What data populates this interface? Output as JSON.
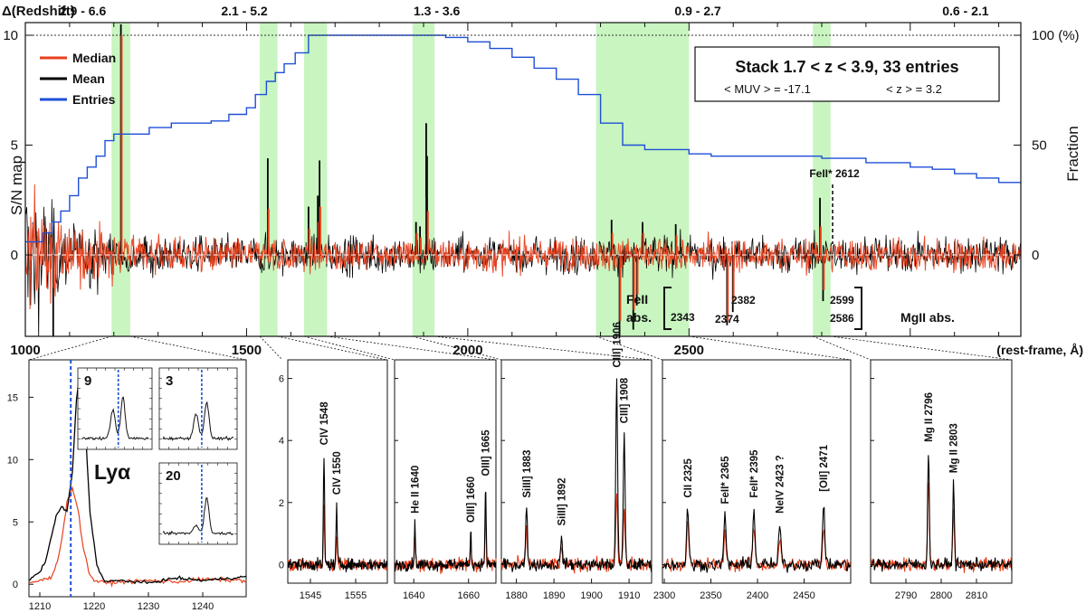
{
  "figure": {
    "top_label": "Δ(Redshift)",
    "y_left_label": "S/N map",
    "y_right_label": "Fraction",
    "x_label": "(rest-frame, Å)",
    "stack_title": "Stack 1.7 < z < 3.9,  33 entries",
    "stack_muv": "< MUV > = -17.1",
    "stack_z": "< z > = 3.2",
    "fe_label": "FeII* 2612",
    "fe_abs_label_1": "FeII",
    "fe_abs_label_2": "abs.",
    "fe_abs_waves": [
      "2343",
      "2374",
      "2382",
      "2599",
      "2586"
    ],
    "mg_abs_label": "MgII abs.",
    "legend": [
      {
        "label": "Median",
        "color": "#e8401c"
      },
      {
        "label": "Mean",
        "color": "#000000"
      },
      {
        "label": "Entries",
        "color": "#1f4fd6"
      }
    ],
    "colors": {
      "median": "#e8401c",
      "mean": "#000000",
      "entries": "#1f4fd6",
      "highlight": "#c8f5c0",
      "blue_dash": "#1f4fd6"
    }
  },
  "chart_data": [
    {
      "type": "line",
      "name": "main",
      "xlim": [
        1000,
        3250
      ],
      "ylim": [
        -4,
        10.5
      ],
      "x_ticks": [
        1000,
        1500,
        2000,
        2500
      ],
      "y_ticks_left": [
        0,
        5,
        10
      ],
      "y_ticks_right": [
        {
          "at": 0,
          "label": "0"
        },
        {
          "at": 5,
          "label": "50"
        },
        {
          "at": 10,
          "label": "100 (%)"
        }
      ],
      "redshift_ranges": [
        {
          "x": 1130,
          "label": "2.9 - 6.6"
        },
        {
          "x": 1495,
          "label": "2.1 - 5.2"
        },
        {
          "x": 1930,
          "label": "1.3 - 3.6"
        },
        {
          "x": 2520,
          "label": "0.9 - 2.7"
        },
        {
          "x": 3125,
          "label": "0.6 - 2.1"
        }
      ],
      "highlight_bands": [
        [
          1195,
          1237
        ],
        [
          1530,
          1570
        ],
        [
          1630,
          1682
        ],
        [
          1875,
          1925
        ],
        [
          2290,
          2500
        ],
        [
          2780,
          2820
        ]
      ],
      "spikes": [
        {
          "x": 1216,
          "mean": 10.5,
          "median": 10.0
        },
        {
          "x": 1548,
          "mean": 4.4,
          "median": 2.1
        },
        {
          "x": 1640,
          "mean": 2.2,
          "median": 1.2
        },
        {
          "x": 1661,
          "mean": 2.7,
          "median": 1.5
        },
        {
          "x": 1665,
          "mean": 4.3,
          "median": 2.2
        },
        {
          "x": 1883,
          "mean": 1.5,
          "median": 1.0
        },
        {
          "x": 1892,
          "mean": 1.3,
          "median": 0.8
        },
        {
          "x": 1906,
          "mean": 6.0,
          "median": 2.6
        },
        {
          "x": 1908,
          "mean": 4.5,
          "median": 2.0
        },
        {
          "x": 2325,
          "mean": 1.6,
          "median": 1.0
        },
        {
          "x": 2395,
          "mean": 1.5,
          "median": 1.0
        },
        {
          "x": 2470,
          "mean": 1.4,
          "median": 0.9
        },
        {
          "x": 2796,
          "mean": 2.6,
          "median": 1.3
        },
        {
          "x": 2343,
          "mean": -3.8,
          "median": -3.0
        },
        {
          "x": 2374,
          "mean": -3.4,
          "median": -2.5
        },
        {
          "x": 2382,
          "mean": -2.3,
          "median": -1.8
        },
        {
          "x": 2586,
          "mean": -3.2,
          "median": -3.0
        },
        {
          "x": 2599,
          "mean": -2.6,
          "median": -2.1
        },
        {
          "x": 2803,
          "mean": -2.1,
          "median": -1.6
        },
        {
          "x": 1063,
          "mean": -4.0,
          "median": -1.5
        }
      ],
      "entries_fraction_percent": {
        "x": [
          1000,
          1040,
          1060,
          1080,
          1100,
          1120,
          1140,
          1160,
          1180,
          1200,
          1240,
          1280,
          1330,
          1380,
          1420,
          1460,
          1500,
          1520,
          1545,
          1565,
          1585,
          1610,
          1640,
          1660,
          1700,
          1800,
          1900,
          1950,
          2000,
          2050,
          2100,
          2150,
          2200,
          2250,
          2300,
          2350,
          2400,
          2500,
          2550,
          2600,
          2700,
          2800,
          2900,
          2950,
          3000,
          3050,
          3100,
          3150,
          3200,
          3250
        ],
        "y": [
          6,
          10,
          15,
          20,
          27,
          35,
          40,
          45,
          52,
          55,
          55,
          58,
          60,
          60,
          61,
          64,
          67,
          73,
          79,
          83,
          87,
          92,
          100,
          100,
          100,
          100,
          100,
          99,
          97,
          94,
          90,
          85,
          80,
          73,
          60,
          50,
          48,
          46,
          45,
          45,
          45,
          44,
          42,
          42,
          40,
          39,
          37,
          35,
          33,
          33
        ]
      }
    },
    {
      "type": "line",
      "name": "lya",
      "title": "Lyα",
      "xlim": [
        1208,
        1248
      ],
      "ylim": [
        -1,
        18
      ],
      "x_ticks": [
        1210,
        1220,
        1230,
        1240
      ],
      "y_ticks": [
        0,
        5,
        10,
        15
      ],
      "blue_dash_x": 1215.7,
      "mean": {
        "x": [
          1208,
          1210,
          1211,
          1212,
          1213,
          1214,
          1215,
          1216,
          1216.7,
          1217.4,
          1218.2,
          1219.2,
          1220.5,
          1222,
          1225,
          1230,
          1235,
          1240,
          1248
        ],
        "y": [
          0.3,
          1.0,
          1.8,
          3.5,
          5.5,
          6.2,
          5.8,
          9.0,
          14.5,
          17.5,
          14.0,
          6.0,
          1.5,
          0.2,
          0.3,
          0.1,
          0.5,
          0.3,
          0.6
        ]
      },
      "median": {
        "x": [
          1208,
          1210,
          1212,
          1213,
          1214,
          1215,
          1216,
          1217,
          1218,
          1219,
          1220,
          1222,
          1225,
          1230,
          1235,
          1240,
          1248
        ],
        "y": [
          0.1,
          0.3,
          0.5,
          1.5,
          3.5,
          6.5,
          7.8,
          6.0,
          3.0,
          1.0,
          0.3,
          0.1,
          0.2,
          0.3,
          0.2,
          0.4,
          0.3
        ]
      }
    }
  ],
  "insets": [
    {
      "label": "9",
      "peak": 0.6,
      "side": 0.42
    },
    {
      "label": "3",
      "peak": 0.52,
      "side": 0.35
    },
    {
      "label": "20",
      "peak": 0.52,
      "side": 0.12
    }
  ],
  "zoom_panels": [
    {
      "xlim": [
        1540,
        1562
      ],
      "x_ticks": [
        1545,
        1555
      ],
      "y_ticks": [
        0,
        2,
        4,
        6
      ],
      "ylim": [
        -0.6,
        6.6
      ],
      "lines": [
        {
          "label": "CIV 1548",
          "x": 1548,
          "mean": 3.5,
          "median": 1.8
        },
        {
          "label": "CIV 1550",
          "x": 1550.8,
          "mean": 1.9,
          "median": 1.0
        }
      ]
    },
    {
      "xlim": [
        1633,
        1670
      ],
      "x_ticks": [
        1640,
        1660
      ],
      "ylim": [
        -0.6,
        6.6
      ],
      "lines": [
        {
          "label": "He II 1640",
          "x": 1640.4,
          "mean": 1.3,
          "median": 1.0
        },
        {
          "label": "OIII] 1660",
          "x": 1660.8,
          "mean": 1.0,
          "median": 0.7
        },
        {
          "label": "OIII] 1665",
          "x": 1666.2,
          "mean": 2.5,
          "median": 1.6
        }
      ]
    },
    {
      "xlim": [
        1876,
        1916
      ],
      "x_ticks": [
        1880,
        1890,
        1900,
        1910
      ],
      "ylim": [
        -0.6,
        6.6
      ],
      "lines": [
        {
          "label": "SiIII] 1883",
          "x": 1882.7,
          "mean": 1.8,
          "median": 1.1
        },
        {
          "label": "SiIII] 1892",
          "x": 1892.0,
          "mean": 0.9,
          "median": 0.6
        },
        {
          "label": "CIII] 1906",
          "x": 1906.7,
          "mean": 6.0,
          "median": 2.2
        },
        {
          "label": "CIII] 1908",
          "x": 1908.7,
          "mean": 4.2,
          "median": 1.8
        }
      ]
    },
    {
      "xlim": [
        2298,
        2500
      ],
      "x_ticks": [
        2300,
        2350,
        2400,
        2450
      ],
      "ylim": [
        -0.6,
        6.6
      ],
      "lines": [
        {
          "label": "CII 2325",
          "x": 2325,
          "mean": 1.8,
          "median": 1.3
        },
        {
          "label": "FeII* 2365",
          "x": 2365,
          "mean": 1.6,
          "median": 1.0
        },
        {
          "label": "FeII* 2395",
          "x": 2396,
          "mean": 1.8,
          "median": 1.2
        },
        {
          "label": "NeIV 2423 ?",
          "x": 2424,
          "mean": 1.3,
          "median": 0.8
        },
        {
          "label": "[OII] 2471",
          "x": 2471,
          "mean": 2.0,
          "median": 1.1
        }
      ]
    },
    {
      "xlim": [
        2780,
        2820
      ],
      "x_ticks": [
        2790,
        2800,
        2810
      ],
      "ylim": [
        -0.6,
        6.6
      ],
      "lines": [
        {
          "label": "Mg II 2796",
          "x": 2796.4,
          "mean": 3.6,
          "median": 2.8
        },
        {
          "label": "Mg II 2803",
          "x": 2803.5,
          "mean": 2.6,
          "median": 1.8
        }
      ]
    }
  ]
}
